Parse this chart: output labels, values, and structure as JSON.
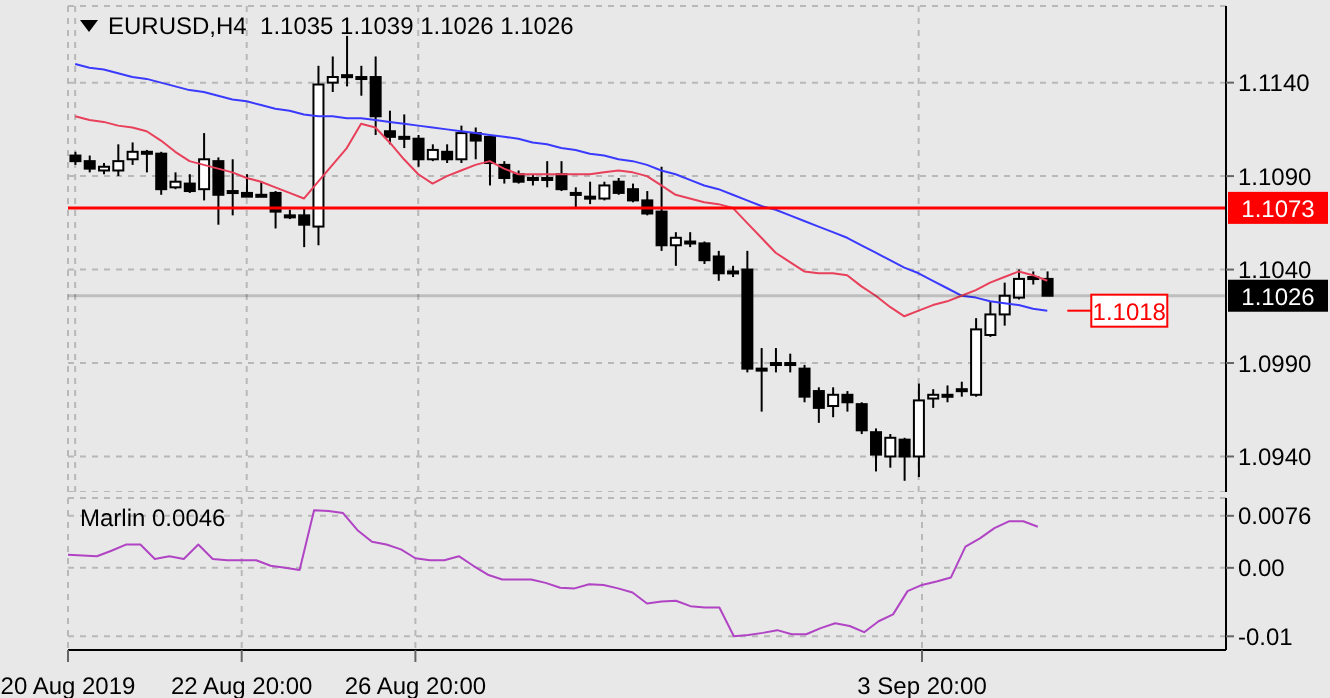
{
  "chart_data": [
    {
      "type": "candlestick",
      "title": "EURUSD,H4  1.1035 1.1039 1.1026 1.1026",
      "categories": [
        null,
        null,
        null,
        null,
        null,
        null,
        null,
        null,
        null,
        null,
        null,
        null,
        null,
        null,
        null,
        null,
        null,
        null,
        null,
        null,
        null,
        null,
        null,
        null,
        null,
        null,
        null,
        null,
        null,
        null,
        null,
        null,
        null,
        null,
        null,
        null,
        null,
        null,
        null,
        null,
        null,
        null,
        null,
        null,
        null,
        null,
        null,
        null,
        null,
        null,
        null,
        null,
        null,
        null,
        null,
        null,
        null,
        null,
        null,
        null,
        null,
        null,
        null,
        null,
        null,
        null,
        null,
        null,
        null
      ],
      "ohlc": [
        [
          1.1101,
          1.1103,
          1.1096,
          1.1098
        ],
        [
          1.1098,
          1.1101,
          1.1092,
          1.1094
        ],
        [
          1.1093,
          1.1097,
          1.1091,
          1.1095
        ],
        [
          1.1093,
          1.1107,
          1.109,
          1.1098
        ],
        [
          1.1099,
          1.1108,
          1.1096,
          1.1103
        ],
        [
          1.1103,
          1.1104,
          1.1092,
          1.1103
        ],
        [
          1.1102,
          1.1103,
          1.108,
          1.1083
        ],
        [
          1.1084,
          1.1092,
          1.1083,
          1.1087
        ],
        [
          1.1086,
          1.1091,
          1.1081,
          1.1082
        ],
        [
          1.1083,
          1.1113,
          1.1077,
          1.1099
        ],
        [
          1.1098,
          1.11,
          1.1064,
          1.108
        ],
        [
          1.1082,
          1.1099,
          1.1069,
          1.1082
        ],
        [
          1.1081,
          1.1091,
          1.1079,
          1.1079
        ],
        [
          1.108,
          1.1087,
          1.108,
          1.108
        ],
        [
          1.1081,
          1.1082,
          1.1062,
          1.1071
        ],
        [
          1.1069,
          1.1072,
          1.1067,
          1.1069
        ],
        [
          1.1069,
          1.1073,
          1.1052,
          1.1064
        ],
        [
          1.1063,
          1.1149,
          1.1053,
          1.1139
        ],
        [
          1.114,
          1.1154,
          1.1135,
          1.1143
        ],
        [
          1.1144,
          1.1165,
          1.1138,
          1.1144
        ],
        [
          1.1143,
          1.1149,
          1.1133,
          1.1143
        ],
        [
          1.1143,
          1.1154,
          1.1112,
          1.1122
        ],
        [
          1.1114,
          1.1125,
          1.1107,
          1.1111
        ],
        [
          1.1111,
          1.1123,
          1.1105,
          1.1111
        ],
        [
          1.111,
          1.1112,
          1.1095,
          1.1099
        ],
        [
          1.1099,
          1.1107,
          1.1098,
          1.1104
        ],
        [
          1.1103,
          1.1107,
          1.1097,
          1.1099
        ],
        [
          1.1099,
          1.1117,
          1.1097,
          1.1113
        ],
        [
          1.1113,
          1.1116,
          1.1099,
          1.1109
        ],
        [
          1.1111,
          1.1112,
          1.1085,
          1.1097
        ],
        [
          1.1096,
          1.1098,
          1.1086,
          1.1089
        ],
        [
          1.1091,
          1.1093,
          1.1086,
          1.1087
        ],
        [
          1.1089,
          1.1091,
          1.1085,
          1.1089
        ],
        [
          1.1089,
          1.1098,
          1.1084,
          1.1089
        ],
        [
          1.1091,
          1.1098,
          1.1082,
          1.1083
        ],
        [
          1.1081,
          1.1084,
          1.1073,
          1.108
        ],
        [
          1.1079,
          1.1087,
          1.1075,
          1.1079
        ],
        [
          1.1078,
          1.1087,
          1.1077,
          1.1085
        ],
        [
          1.1087,
          1.1089,
          1.108,
          1.1081
        ],
        [
          1.1083,
          1.1086,
          1.1076,
          1.1077
        ],
        [
          1.1077,
          1.1082,
          1.1069,
          1.107
        ],
        [
          1.1071,
          1.1095,
          1.105,
          1.1053
        ],
        [
          1.1053,
          1.106,
          1.1042,
          1.1057
        ],
        [
          1.1055,
          1.106,
          1.1052,
          1.1055
        ],
        [
          1.1054,
          1.1055,
          1.1043,
          1.1045
        ],
        [
          1.1047,
          1.105,
          1.1034,
          1.1038
        ],
        [
          1.1039,
          1.1042,
          1.1036,
          1.1039
        ],
        [
          1.104,
          1.105,
          1.0985,
          1.0987
        ],
        [
          1.0987,
          1.0998,
          1.0964,
          1.0987
        ],
        [
          1.099,
          1.0998,
          1.0985,
          1.099
        ],
        [
          1.099,
          1.0995,
          1.0985,
          1.099
        ],
        [
          1.0987,
          1.0989,
          1.0969,
          1.0972
        ],
        [
          1.0975,
          1.0977,
          1.0958,
          1.0966
        ],
        [
          1.0967,
          1.0977,
          1.0961,
          1.0973
        ],
        [
          1.0973,
          1.0975,
          1.0964,
          1.0969
        ],
        [
          1.0968,
          1.0969,
          1.0952,
          1.0954
        ],
        [
          1.0953,
          1.0955,
          1.0932,
          1.0941
        ],
        [
          1.094,
          1.0952,
          1.0934,
          1.095
        ],
        [
          1.0949,
          1.095,
          1.0927,
          1.094
        ],
        [
          1.094,
          1.0979,
          1.0929,
          1.097
        ],
        [
          1.0971,
          1.0976,
          1.0966,
          1.0973
        ],
        [
          1.0973,
          1.0978,
          1.0969,
          1.0973
        ],
        [
          1.0976,
          1.098,
          1.0972,
          1.0976
        ],
        [
          1.0973,
          1.1014,
          1.0972,
          1.1008
        ],
        [
          1.1005,
          1.1023,
          1.1004,
          1.1016
        ],
        [
          1.1016,
          1.1033,
          1.101,
          1.1026
        ],
        [
          1.1025,
          1.104,
          1.1024,
          1.1035
        ],
        [
          1.1036,
          1.1039,
          1.1032,
          1.1036
        ],
        [
          1.1035,
          1.1039,
          1.1026,
          1.1026
        ]
      ],
      "series": [
        {
          "type": "line",
          "color": "#3a3aff",
          "values": [
            1.115,
            1.1148,
            1.1147,
            1.1145,
            1.1143,
            1.1142,
            1.114,
            1.1138,
            1.1136,
            1.1135,
            1.1133,
            1.1131,
            1.113,
            1.1128,
            1.1126,
            1.1125,
            1.1123,
            1.1122,
            1.1122,
            1.1121,
            1.1121,
            1.112,
            1.1119,
            1.1118,
            1.1117,
            1.1116,
            1.1115,
            1.1114,
            1.1113,
            1.1112,
            1.1111,
            1.111,
            1.1108,
            1.1107,
            1.1105,
            1.1104,
            1.1102,
            1.1101,
            1.1099,
            1.1098,
            1.1096,
            1.1093,
            1.1091,
            1.1088,
            1.1085,
            1.1083,
            1.108,
            1.1077,
            1.1074,
            1.1072,
            1.1069,
            1.1066,
            1.1063,
            1.106,
            1.1057,
            1.1053,
            1.1049,
            1.1045,
            1.1041,
            1.1038,
            1.1034,
            1.103,
            1.1026,
            1.1025,
            1.1023,
            1.1022,
            1.1021,
            1.1019,
            1.1018
          ],
          "value_labels": [
            null,
            null,
            null,
            null,
            null,
            null,
            null,
            null,
            null,
            null,
            null,
            null,
            null,
            null,
            null,
            null,
            null,
            null,
            null,
            null,
            null,
            null,
            null,
            null,
            null,
            null,
            null,
            null,
            null,
            null,
            null,
            null,
            null,
            null,
            null,
            null,
            null,
            null,
            null,
            null,
            null,
            null,
            null,
            null,
            null,
            null,
            null,
            null,
            null,
            null,
            null,
            null,
            null,
            null,
            null,
            null,
            null,
            null,
            null,
            null,
            null,
            null,
            null,
            null,
            null,
            null,
            null,
            null,
            "1.1018"
          ]
        },
        {
          "type": "line",
          "color": "#e8405a",
          "values": [
            1.1122,
            1.112,
            1.1119,
            1.1117,
            1.1116,
            1.1114,
            1.1109,
            1.1103,
            1.1098,
            1.1096,
            1.1094,
            1.1092,
            1.1089,
            1.1087,
            1.1084,
            1.1081,
            1.1078,
            1.1087,
            1.1096,
            1.1105,
            1.1118,
            1.1116,
            1.1108,
            1.1099,
            1.1091,
            1.1086,
            1.109,
            1.1093,
            1.1096,
            1.1098,
            1.1094,
            1.1091,
            1.1091,
            1.1091,
            1.1091,
            1.1091,
            1.1091,
            1.1092,
            1.1093,
            1.1092,
            1.109,
            1.1085,
            1.108,
            1.1078,
            1.1076,
            1.1075,
            1.1073,
            1.1065,
            1.1057,
            1.1049,
            1.1044,
            1.1039,
            1.1038,
            1.1038,
            1.1037,
            1.1031,
            1.1026,
            1.102,
            1.1015,
            1.1018,
            1.1021,
            1.1023,
            1.1026,
            1.1029,
            1.1033,
            1.1036,
            1.1039,
            1.1037,
            1.1034
          ]
        }
      ],
      "ylim": [
        1.0921,
        1.1181
      ],
      "yticks": [
        {
          "value": 1.094,
          "label": "1.0940"
        },
        {
          "value": 1.099,
          "label": "1.0990"
        },
        {
          "value": 1.104,
          "label": "1.1040"
        },
        {
          "value": 1.109,
          "label": "1.1090"
        },
        {
          "value": 1.114,
          "label": "1.1140"
        }
      ],
      "ref_lines": [
        {
          "axis": "y",
          "value": 1.1073,
          "label": "1.1073",
          "color": "#ff0000"
        },
        {
          "axis": "y",
          "value": 1.1026,
          "label": "1.1026",
          "color": "#000000"
        }
      ],
      "grid": true,
      "tick_labels": "y"
    },
    {
      "type": "line",
      "title": "Marlin 0.0046",
      "categories": [
        "20 Aug 2019",
        null,
        null,
        null,
        null,
        null,
        null,
        null,
        null,
        null,
        null,
        null,
        "22 Aug 20:00",
        null,
        null,
        null,
        null,
        null,
        null,
        null,
        null,
        null,
        null,
        null,
        "26 Aug 20:00",
        null,
        null,
        null,
        null,
        null,
        null,
        null,
        null,
        null,
        null,
        null,
        null,
        null,
        null,
        null,
        null,
        null,
        null,
        null,
        null,
        null,
        null,
        null,
        null,
        null,
        null,
        null,
        null,
        null,
        null,
        null,
        null,
        null,
        null,
        "3 Sep 20:00",
        null,
        null,
        null,
        null,
        null,
        null,
        null,
        null,
        null
      ],
      "series": [
        {
          "color": "#b044c4",
          "values": [
            0.0019,
            0.0018,
            0.0017,
            0.0025,
            0.0034,
            0.0034,
            0.0013,
            0.0017,
            0.0013,
            0.0034,
            0.0013,
            0.0011,
            0.0011,
            0.0011,
            0.0003,
            0.0,
            -0.0003,
            0.0084,
            0.0083,
            0.008,
            0.0055,
            0.0038,
            0.0034,
            0.0027,
            0.0014,
            0.0011,
            0.0011,
            0.0017,
            0.0003,
            -0.001,
            -0.0017,
            -0.0017,
            -0.0017,
            -0.0022,
            -0.0029,
            -0.003,
            -0.0024,
            -0.0025,
            -0.003,
            -0.0036,
            -0.0052,
            -0.0049,
            -0.0048,
            -0.0056,
            -0.0058,
            -0.0058,
            -0.01,
            -0.0098,
            -0.0095,
            -0.0091,
            -0.0097,
            -0.0097,
            -0.0088,
            -0.0081,
            -0.0085,
            -0.0094,
            -0.0078,
            -0.0068,
            -0.0034,
            -0.0025,
            -0.002,
            -0.0014,
            0.0031,
            0.0043,
            0.0058,
            0.0068,
            0.0068,
            0.006,
            null
          ]
        }
      ],
      "ylim": [
        -0.012,
        0.0102
      ],
      "yticks": [
        {
          "value": -0.01,
          "label": "-0.01"
        },
        {
          "value": 0,
          "label": "0.00"
        },
        {
          "value": 0.0076,
          "label": "0.0076"
        }
      ],
      "grid": true
    }
  ]
}
